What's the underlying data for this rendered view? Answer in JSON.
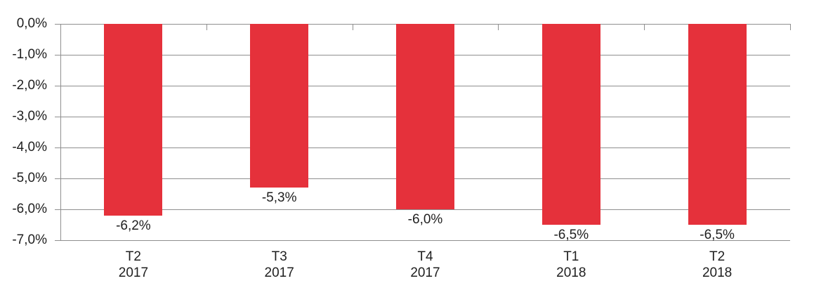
{
  "chart_data": {
    "type": "bar",
    "title": "",
    "xlabel": "",
    "ylabel": "",
    "categories": [
      "T2 2017",
      "T3 2017",
      "T4 2017",
      "T1 2018",
      "T2 2018"
    ],
    "category_lines": [
      [
        "T2",
        "2017"
      ],
      [
        "T3",
        "2017"
      ],
      [
        "T4",
        "2017"
      ],
      [
        "T1",
        "2018"
      ],
      [
        "T2",
        "2018"
      ]
    ],
    "values": [
      -6.2,
      -5.3,
      -6.0,
      -6.5,
      -6.5
    ],
    "data_labels": [
      "-6,2%",
      "-5,3%",
      "-6,0%",
      "-6,5%",
      "-6,5%"
    ],
    "data_label_position": "outside-end-below",
    "y_axis": {
      "min": -7,
      "max": 0,
      "step": 1,
      "tick_labels": [
        "0,0%",
        "-1,0%",
        "-2,0%",
        "-3,0%",
        "-4,0%",
        "-5,0%",
        "-6,0%",
        "-7,0%"
      ]
    },
    "grid": true,
    "legend": false,
    "number_format": "french-percent-one-decimal",
    "colors": {
      "bar": "#E5313B",
      "grid": "#8F8F8F",
      "axis": "#8F8F8F",
      "text": "#1F1F1F",
      "background": "#FFFFFF"
    }
  }
}
